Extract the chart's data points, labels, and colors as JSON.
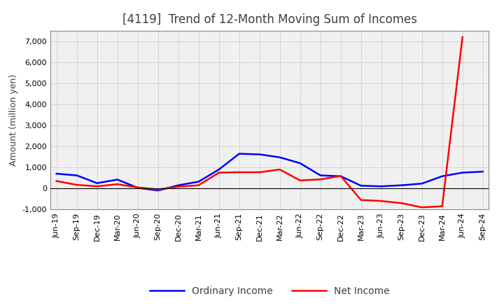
{
  "title": "[4119]  Trend of 12-Month Moving Sum of Incomes",
  "ylabel": "Amount (million yen)",
  "ylim": [
    -1000,
    7500
  ],
  "yticks": [
    -1000,
    0,
    1000,
    2000,
    3000,
    4000,
    5000,
    6000,
    7000
  ],
  "x_labels": [
    "Jun-19",
    "Sep-19",
    "Dec-19",
    "Mar-20",
    "Jun-20",
    "Sep-20",
    "Dec-20",
    "Mar-21",
    "Jun-21",
    "Sep-21",
    "Dec-21",
    "Mar-22",
    "Jun-22",
    "Sep-22",
    "Dec-22",
    "Mar-23",
    "Jun-23",
    "Sep-23",
    "Dec-23",
    "Mar-24",
    "Jun-24",
    "Sep-24"
  ],
  "ordinary_income": [
    700,
    620,
    250,
    420,
    30,
    -100,
    150,
    320,
    900,
    1650,
    1620,
    1480,
    1200,
    620,
    580,
    130,
    100,
    150,
    230,
    580,
    750,
    800
  ],
  "net_income": [
    350,
    170,
    100,
    200,
    50,
    -50,
    80,
    150,
    750,
    770,
    770,
    900,
    380,
    430,
    590,
    -550,
    -600,
    -700,
    -900,
    -850,
    7200,
    null
  ],
  "ordinary_color": "#0000FF",
  "net_color": "#FF0000",
  "background_color": "#FFFFFF",
  "plot_bg_color": "#F0F0F0",
  "grid_color": "#999999",
  "title_color": "#404040",
  "legend_labels": [
    "Ordinary Income",
    "Net Income"
  ],
  "title_fontsize": 12,
  "axis_fontsize": 9,
  "tick_fontsize": 8,
  "legend_fontsize": 10
}
